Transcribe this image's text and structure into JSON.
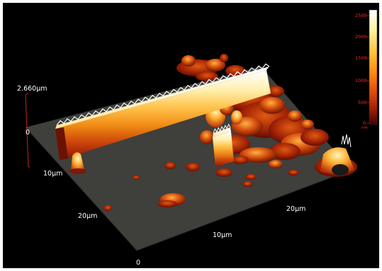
{
  "viewer": {
    "z_max_label": "2.660µm",
    "z_origin_label": "0",
    "left_axis_labels": [
      "10µm",
      "20µm"
    ],
    "bottom_origin_label": "0",
    "bottom_axis_labels": [
      "10µm",
      "20µm"
    ]
  },
  "colorbar": {
    "ticks": [
      "2500",
      "2000",
      "1500",
      "1000",
      "500",
      "0"
    ],
    "unit": "nm",
    "colors": [
      "#ffffff",
      "#fff2a0",
      "#ffc83c",
      "#ff8a10",
      "#e04a0a",
      "#9a1a05",
      "#3a0502"
    ]
  },
  "surface": {
    "base_color": "#3f3f3b",
    "colormap": "hot"
  }
}
